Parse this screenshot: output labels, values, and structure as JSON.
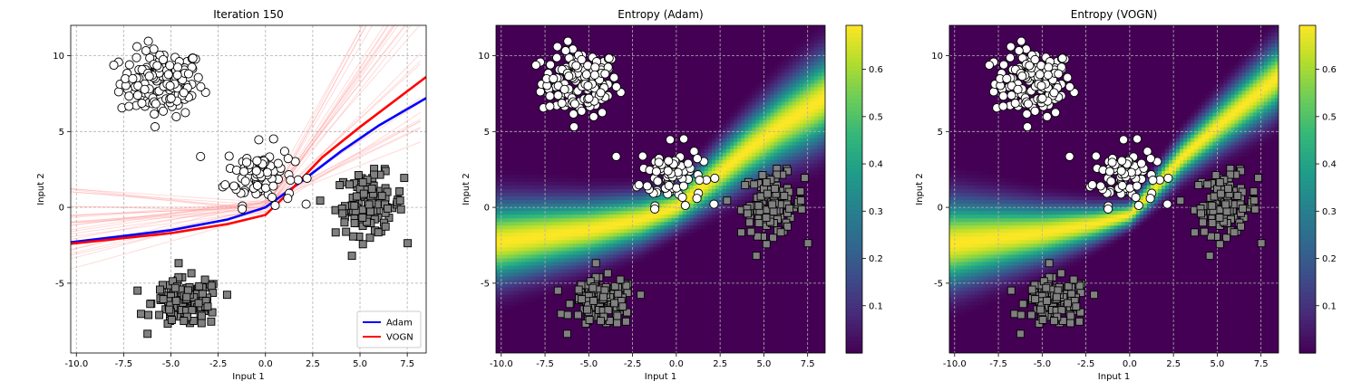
{
  "chart_data": [
    {
      "type": "scatter",
      "title": "Iteration 150",
      "xlabel": "Input 1",
      "ylabel": "Input 2",
      "xlim": [
        -10.3,
        8.5
      ],
      "ylim": [
        -9.6,
        12.0
      ],
      "xticks": [
        -10.0,
        -7.5,
        -5.0,
        -2.5,
        0.0,
        2.5,
        5.0,
        7.5
      ],
      "yticks": [
        -5,
        0,
        5,
        10
      ],
      "grid": true,
      "legend": {
        "placement": "bottom-right",
        "entries": [
          "Adam",
          "VOGN"
        ]
      },
      "clusters": [
        {
          "marker": "circle",
          "fill": "#ffffff",
          "center": [
            -5.5,
            8.2
          ],
          "spread": [
            1.1,
            1.1
          ],
          "count": 140
        },
        {
          "marker": "circle",
          "fill": "#ffffff",
          "center": [
            -0.3,
            2.2
          ],
          "spread": [
            0.9,
            1.0
          ],
          "count": 90
        },
        {
          "marker": "square",
          "fill": "#808080",
          "center": [
            5.5,
            0.2
          ],
          "spread": [
            0.9,
            1.0
          ],
          "count": 110
        },
        {
          "marker": "square",
          "fill": "#808080",
          "center": [
            -4.2,
            -6.3
          ],
          "spread": [
            0.9,
            0.8
          ],
          "count": 140
        }
      ],
      "series": [
        {
          "name": "Adam",
          "color": "#0000ff",
          "x": [
            -10.3,
            -5,
            -2,
            0,
            2,
            4,
            6,
            8.5
          ],
          "y": [
            -2.3,
            -1.5,
            -0.8,
            0,
            1.8,
            3.7,
            5.4,
            7.2
          ]
        },
        {
          "name": "VOGN",
          "color": "#ff0000",
          "x": [
            -10.3,
            -5,
            -2,
            0,
            1,
            3,
            5,
            8.5
          ],
          "y": [
            -2.4,
            -1.7,
            -1.1,
            -0.5,
            0.7,
            3.3,
            5.3,
            8.6
          ]
        }
      ],
      "sample_lines": {
        "color": "#ff9999",
        "count": 28,
        "xlim": [
          -10.3,
          8.5
        ]
      }
    },
    {
      "type": "heatmap",
      "title": "Entropy (Adam)",
      "xlabel": "Input 1",
      "ylabel": "Input 2",
      "xlim": [
        -10.3,
        8.5
      ],
      "ylim": [
        -9.6,
        12.0
      ],
      "xticks": [
        -10.0,
        -7.5,
        -5.0,
        -2.5,
        0.0,
        2.5,
        5.0,
        7.5
      ],
      "yticks": [
        -5,
        0,
        5,
        10
      ],
      "colorbar": {
        "colormap": "viridis",
        "range": [
          0,
          0.693
        ],
        "ticks": [
          0.1,
          0.2,
          0.3,
          0.4,
          0.5,
          0.6
        ]
      },
      "boundary": {
        "x": [
          -10.3,
          -5,
          -2,
          0,
          2,
          4,
          6,
          8.5
        ],
        "y": [
          -2.3,
          -1.5,
          -0.8,
          0,
          1.8,
          3.7,
          5.4,
          7.2
        ]
      },
      "band_width": {
        "far_left": 2.4,
        "near_origin": 1.2,
        "far_right": 2.6
      }
    },
    {
      "type": "heatmap",
      "title": "Entropy (VOGN)",
      "xlabel": "Input 1",
      "ylabel": "Input 2",
      "xlim": [
        -10.3,
        8.5
      ],
      "ylim": [
        -9.6,
        12.0
      ],
      "xticks": [
        -10.0,
        -7.5,
        -5.0,
        -2.5,
        0.0,
        2.5,
        5.0,
        7.5
      ],
      "yticks": [
        -5,
        0,
        5,
        10
      ],
      "colorbar": {
        "colormap": "viridis",
        "range": [
          0,
          0.693
        ],
        "ticks": [
          0.1,
          0.2,
          0.3,
          0.4,
          0.5,
          0.6
        ]
      },
      "boundary": {
        "x": [
          -10.3,
          -5,
          -2,
          0,
          1,
          3,
          5,
          8.5
        ],
        "y": [
          -2.4,
          -1.7,
          -1.1,
          -0.5,
          0.7,
          3.3,
          5.3,
          8.6
        ]
      },
      "band_width": {
        "far_left": 2.6,
        "near_origin": 0.7,
        "far_right": 2.0
      }
    }
  ]
}
